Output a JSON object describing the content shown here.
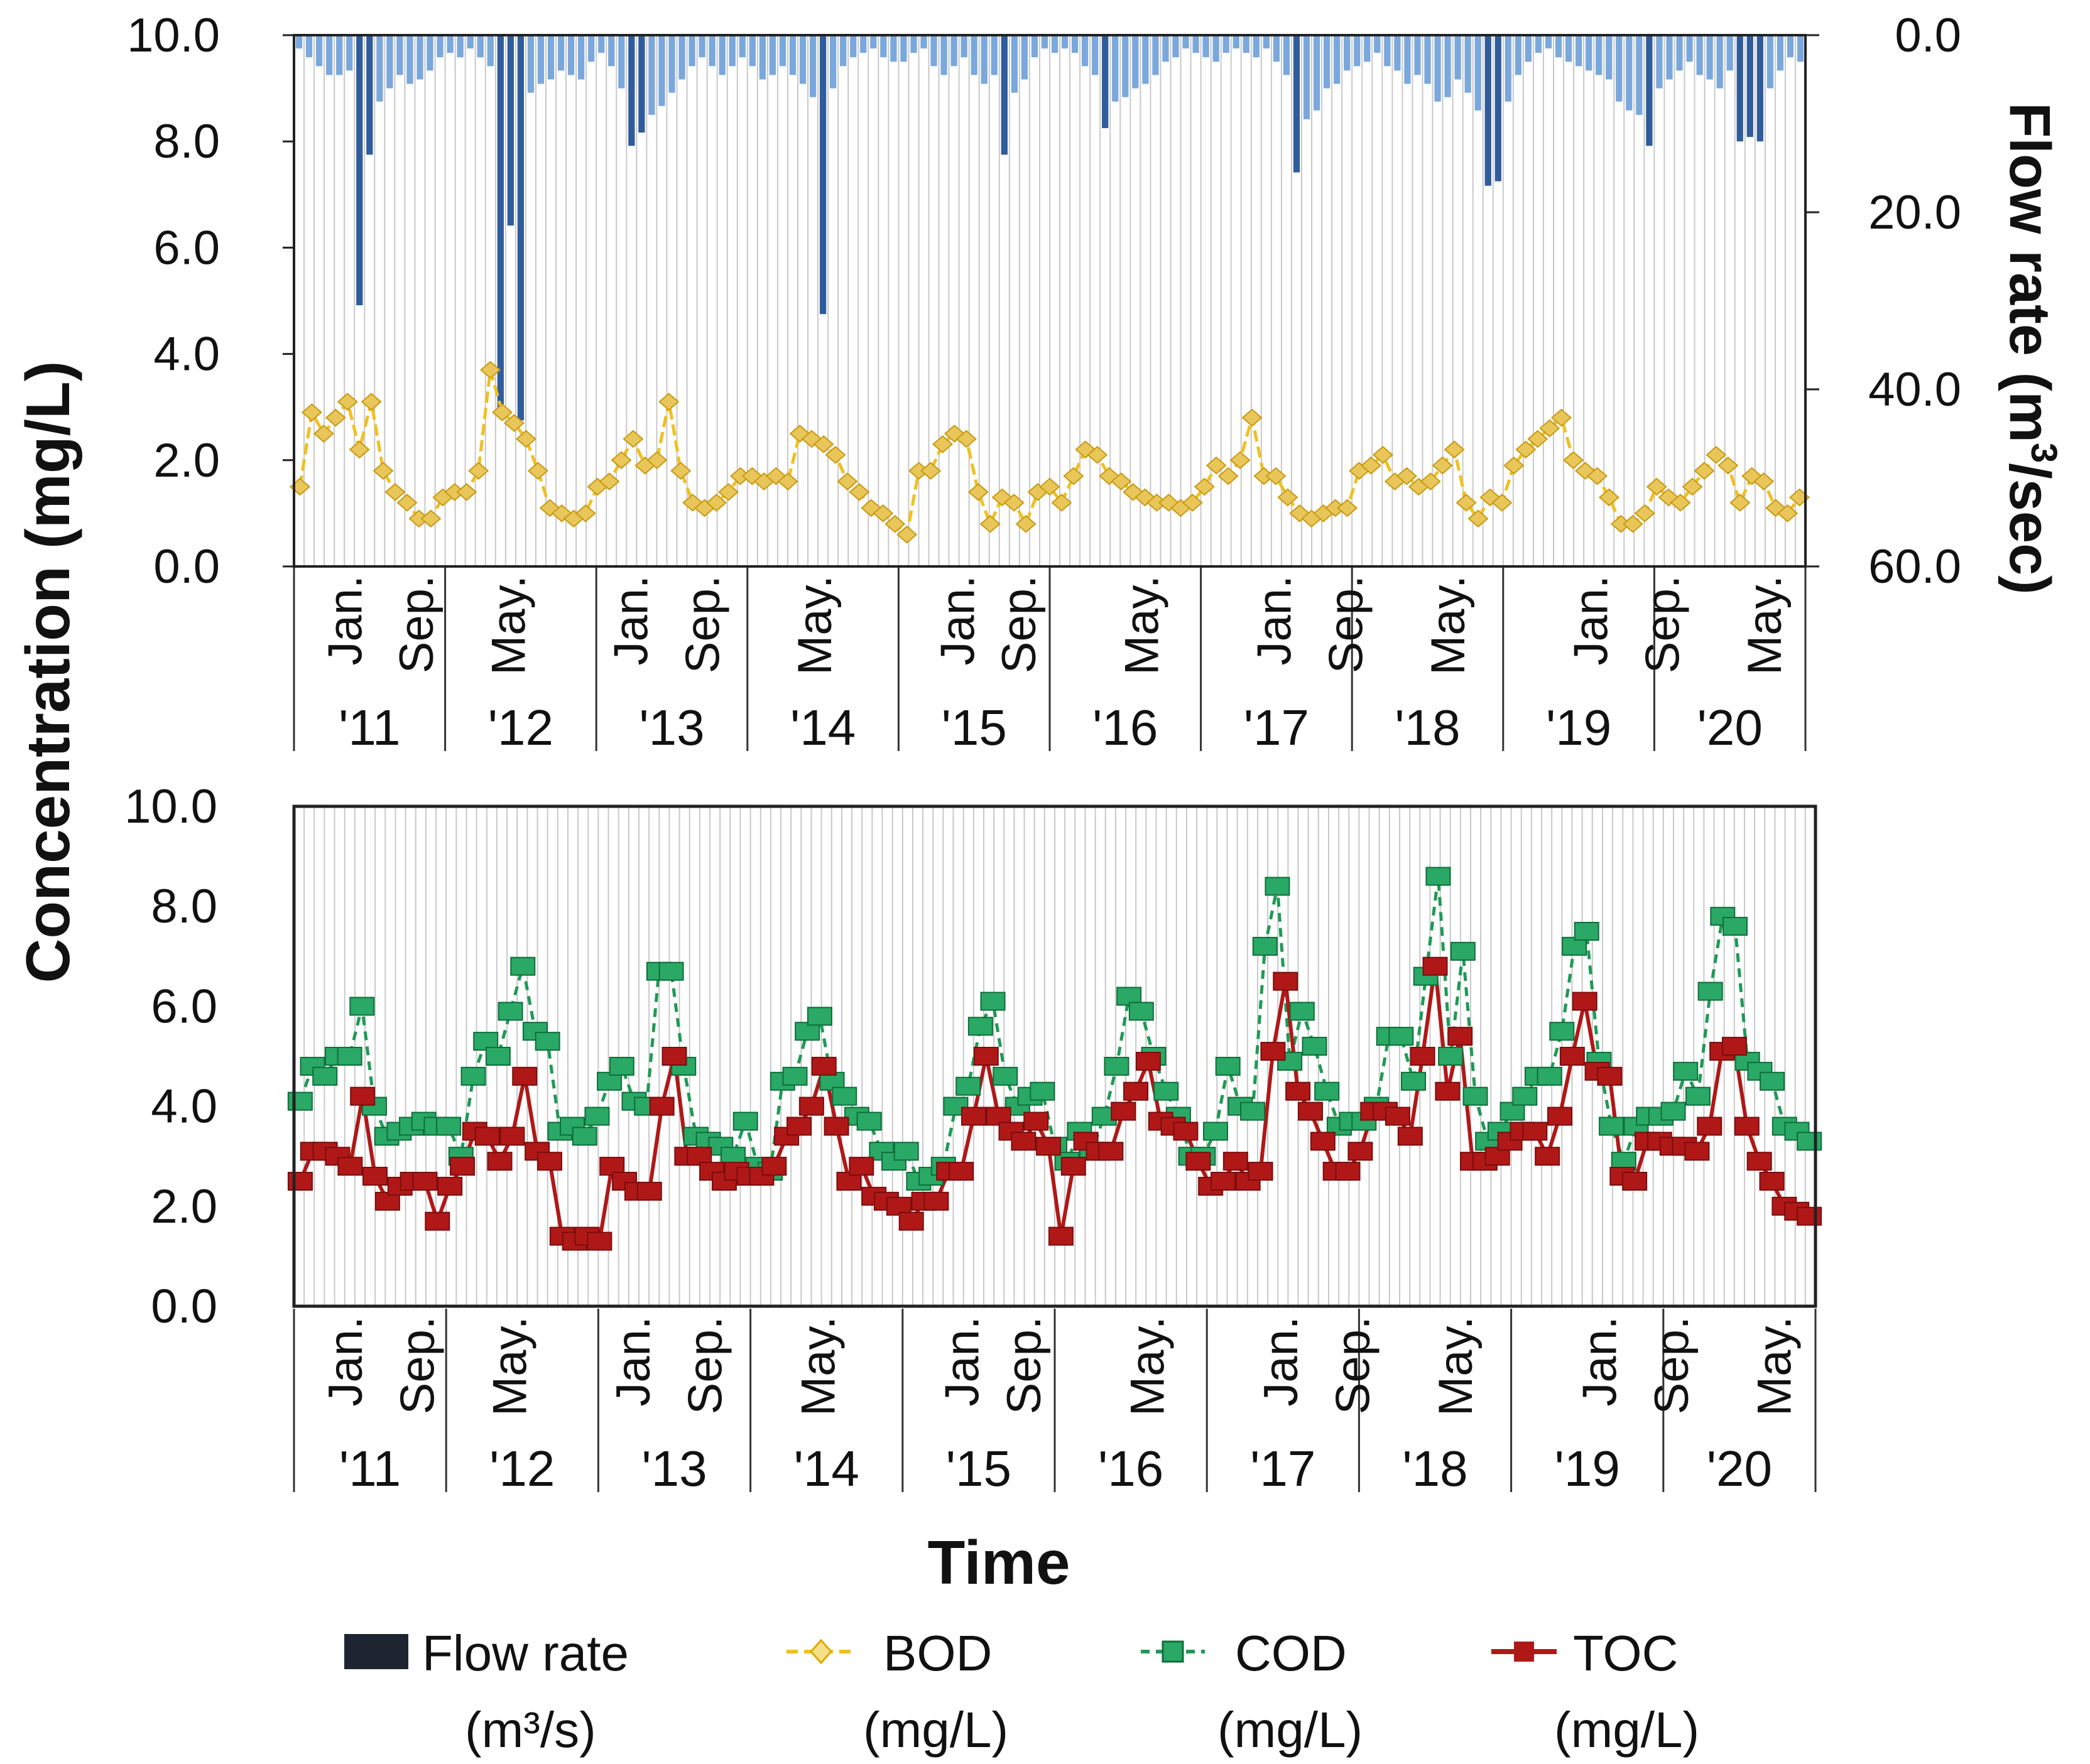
{
  "y_axis_title": "Concentration (mg/L)",
  "y2_axis_title_main": "Flow rate (m",
  "y2_axis_title_sup": "3",
  "y2_axis_title_end": "/sec)",
  "x_axis_title": "Time",
  "legend": [
    {
      "label": "Flow rate",
      "unit": "(m³/s)",
      "color": "#1f2530",
      "marker": "bar"
    },
    {
      "label": "BOD",
      "unit": "(mg/L)",
      "color": "#f0c020",
      "marker": "diamond"
    },
    {
      "label": "COD",
      "unit": "(mg/L)",
      "color": "#1e9a55",
      "marker": "square"
    },
    {
      "label": "TOC",
      "unit": "(mg/L)",
      "color": "#b01818",
      "marker": "square"
    }
  ],
  "colors": {
    "flow_light": "#7aa8dc",
    "flow_dark": "#2f5c9a",
    "grid": "#c8c8c8",
    "bod": "#f0c020",
    "bod_fill": "#e8c65a",
    "cod": "#1e9a55",
    "cod_fill": "#2aa866",
    "toc": "#b01818"
  },
  "chart_data": [
    {
      "type": "bar+line",
      "xlabel": "",
      "ylabel": "Concentration (mg/L)",
      "y2label": "Flow rate (m³/sec)",
      "ylim": [
        0,
        10
      ],
      "y2lim": [
        0,
        60
      ],
      "y2_inverted": true,
      "yticks": [
        "0.0",
        "2.0",
        "4.0",
        "6.0",
        "8.0",
        "10.0"
      ],
      "y2ticks": [
        "0.0",
        "20.0",
        "40.0",
        "60.0"
      ],
      "year_labels": [
        "'11",
        "'12",
        "'13",
        "'14",
        "'15",
        "'16",
        "'17",
        "'18",
        "'19",
        "'20"
      ],
      "month_labels": [
        {
          "text": "Jan.",
          "x": 5
        },
        {
          "text": "Sep.",
          "x": 12
        },
        {
          "text": "May.",
          "x": 21
        },
        {
          "text": "Jan.",
          "x": 33
        },
        {
          "text": "Sep.",
          "x": 40
        },
        {
          "text": "May.",
          "x": 51
        },
        {
          "text": "Jan.",
          "x": 65
        },
        {
          "text": "Sep.",
          "x": 71
        },
        {
          "text": "May.",
          "x": 83
        },
        {
          "text": "Jan.",
          "x": 96
        },
        {
          "text": "Sep.",
          "x": 103
        },
        {
          "text": "May.",
          "x": 113
        },
        {
          "text": "Jan.",
          "x": 127
        },
        {
          "text": "Sep.",
          "x": 134
        },
        {
          "text": "May.",
          "x": 144
        }
      ],
      "legend_position": "bottom",
      "grid": true,
      "series": [
        {
          "name": "Flow rate",
          "axis": "y2",
          "kind": "bar",
          "values": [
            1.5,
            2.5,
            3.5,
            4.5,
            4.5,
            4.0,
            30.5,
            13.5,
            7.5,
            6.0,
            4.5,
            5.5,
            5.0,
            4.0,
            2.5,
            2.0,
            2.5,
            1.5,
            2.5,
            3.5,
            43.0,
            21.5,
            43.5,
            6.5,
            5.5,
            5.0,
            4.0,
            4.5,
            5.0,
            3.0,
            2.0,
            3.5,
            6.0,
            12.5,
            11.0,
            9.0,
            8.0,
            6.5,
            5.0,
            3.5,
            2.5,
            3.5,
            4.5,
            3.5,
            2.5,
            3.5,
            5.0,
            4.5,
            3.5,
            4.5,
            5.5,
            7.0,
            31.5,
            6.0,
            3.5,
            2.5,
            2.0,
            1.5,
            2.5,
            3.0,
            3.0,
            2.0,
            1.5,
            3.5,
            4.5,
            3.5,
            2.5,
            4.5,
            5.5,
            4.5,
            13.5,
            6.5,
            5.0,
            2.5,
            1.5,
            2.0,
            1.5,
            2.0,
            3.5,
            4.5,
            10.5,
            7.5,
            7.0,
            6.0,
            5.5,
            4.5,
            3.0,
            2.5,
            1.5,
            2.0,
            2.5,
            3.0,
            2.0,
            1.5,
            2.0,
            2.5,
            1.5,
            3.0,
            4.5,
            15.5,
            9.5,
            8.5,
            6.0,
            5.5,
            4.0,
            3.5,
            3.0,
            2.0,
            3.5,
            4.0,
            5.5,
            4.5,
            5.5,
            7.5,
            7.0,
            5.0,
            6.5,
            8.5,
            17.0,
            16.5,
            7.5,
            4.5,
            3.0,
            2.0,
            1.5,
            2.5,
            3.0,
            3.5,
            4.0,
            4.5,
            5.0,
            7.5,
            8.5,
            9.0,
            12.5,
            6.0,
            5.0,
            4.0,
            3.0,
            4.5,
            5.0,
            6.0,
            4.0,
            12.0,
            11.5,
            12.0,
            6.0,
            4.0,
            2.5,
            3.0
          ]
        },
        {
          "name": "BOD",
          "axis": "y",
          "kind": "line",
          "values": [
            1.5,
            2.9,
            2.5,
            2.8,
            3.1,
            2.2,
            3.1,
            1.8,
            1.4,
            1.2,
            0.9,
            0.9,
            1.3,
            1.4,
            1.4,
            1.8,
            3.7,
            2.9,
            2.7,
            2.4,
            1.8,
            1.1,
            1.0,
            0.9,
            1.0,
            1.5,
            1.6,
            2.0,
            2.4,
            1.9,
            2.0,
            3.1,
            1.8,
            1.2,
            1.1,
            1.2,
            1.4,
            1.7,
            1.7,
            1.6,
            1.7,
            1.6,
            2.5,
            2.4,
            2.3,
            2.1,
            1.6,
            1.4,
            1.1,
            1.0,
            0.8,
            0.6,
            1.8,
            1.8,
            2.3,
            2.5,
            2.4,
            1.4,
            0.8,
            1.3,
            1.2,
            0.8,
            1.4,
            1.5,
            1.2,
            1.7,
            2.2,
            2.1,
            1.7,
            1.6,
            1.4,
            1.3,
            1.2,
            1.2,
            1.1,
            1.2,
            1.5,
            1.9,
            1.7,
            2.0,
            2.8,
            1.7,
            1.7,
            1.3,
            1.0,
            0.9,
            1.0,
            1.1,
            1.1,
            1.8,
            1.9,
            2.1,
            1.6,
            1.7,
            1.5,
            1.6,
            1.9,
            2.2,
            1.2,
            0.9,
            1.3,
            1.2,
            1.9,
            2.2,
            2.4,
            2.6,
            2.8,
            2.0,
            1.8,
            1.7,
            1.3,
            0.8,
            0.8,
            1.0,
            1.5,
            1.3,
            1.2,
            1.5,
            1.8,
            2.1,
            1.9,
            1.2,
            1.7,
            1.6,
            1.1,
            1.0,
            1.3
          ]
        }
      ]
    },
    {
      "type": "line",
      "xlabel": "Time",
      "ylabel": "Concentration (mg/L)",
      "ylim": [
        0,
        10
      ],
      "yticks": [
        "0.0",
        "2.0",
        "4.0",
        "6.0",
        "8.0",
        "10.0"
      ],
      "year_labels": [
        "'11",
        "'12",
        "'13",
        "'14",
        "'15",
        "'16",
        "'17",
        "'18",
        "'19",
        "'20"
      ],
      "month_labels": [
        {
          "text": "Jan.",
          "x": 5
        },
        {
          "text": "Sep.",
          "x": 12
        },
        {
          "text": "May.",
          "x": 21
        },
        {
          "text": "Jan.",
          "x": 33
        },
        {
          "text": "Sep.",
          "x": 40
        },
        {
          "text": "May.",
          "x": 51
        },
        {
          "text": "Jan.",
          "x": 65
        },
        {
          "text": "Sep.",
          "x": 71
        },
        {
          "text": "May.",
          "x": 83
        },
        {
          "text": "Jan.",
          "x": 96
        },
        {
          "text": "Sep.",
          "x": 103
        },
        {
          "text": "May.",
          "x": 113
        },
        {
          "text": "Jan.",
          "x": 127
        },
        {
          "text": "Sep.",
          "x": 134
        },
        {
          "text": "May.",
          "x": 144
        }
      ],
      "legend_position": "bottom",
      "grid": true,
      "series": [
        {
          "name": "COD",
          "values": [
            4.1,
            4.8,
            4.6,
            5.0,
            5.0,
            6.0,
            4.0,
            3.4,
            3.5,
            3.6,
            3.7,
            3.6,
            3.6,
            3.0,
            4.6,
            5.3,
            5.0,
            5.9,
            6.8,
            5.5,
            5.3,
            3.5,
            3.6,
            3.4,
            3.8,
            4.5,
            4.8,
            4.1,
            4.0,
            6.7,
            6.7,
            4.8,
            3.4,
            3.3,
            3.2,
            3.0,
            3.7,
            2.8,
            2.7,
            4.5,
            4.6,
            5.5,
            5.8,
            4.5,
            4.2,
            3.8,
            3.7,
            3.1,
            2.9,
            3.1,
            2.5,
            2.6,
            2.8,
            4.0,
            4.4,
            5.6,
            6.1,
            4.6,
            4.0,
            4.2,
            4.3,
            3.2,
            2.9,
            3.5,
            3.1,
            3.8,
            4.8,
            6.2,
            5.9,
            5.0,
            4.3,
            3.8,
            3.0,
            3.0,
            3.5,
            4.8,
            4.0,
            3.9,
            7.2,
            8.4,
            4.9,
            5.9,
            5.2,
            4.3,
            3.6,
            3.7,
            3.7,
            4.0,
            5.4,
            5.4,
            4.5,
            6.6,
            8.6,
            5.0,
            7.1,
            4.2,
            3.3,
            3.5,
            3.9,
            4.2,
            4.6,
            4.6,
            5.5,
            7.2,
            7.5,
            4.9,
            3.6,
            2.9,
            3.6,
            3.8,
            3.8,
            3.9,
            4.7,
            4.2,
            6.3,
            7.8,
            7.6,
            4.9,
            4.7,
            4.5,
            3.6,
            3.5,
            3.3
          ]
        },
        {
          "name": "TOC",
          "values": [
            2.5,
            3.1,
            3.1,
            3.0,
            2.8,
            4.2,
            2.6,
            2.1,
            2.4,
            2.5,
            2.5,
            1.7,
            2.4,
            2.8,
            3.5,
            3.4,
            2.9,
            3.4,
            4.6,
            3.1,
            2.9,
            1.4,
            1.3,
            1.4,
            1.3,
            2.8,
            2.5,
            2.3,
            2.3,
            4.0,
            5.0,
            3.0,
            3.0,
            2.7,
            2.5,
            2.7,
            2.6,
            2.6,
            2.8,
            3.4,
            3.6,
            4.0,
            4.8,
            3.6,
            2.5,
            2.8,
            2.2,
            2.1,
            2.0,
            1.7,
            2.1,
            2.1,
            2.7,
            2.7,
            3.8,
            5.0,
            3.8,
            3.5,
            3.3,
            3.7,
            3.2,
            1.4,
            2.8,
            3.3,
            3.1,
            3.1,
            3.9,
            4.3,
            4.9,
            3.7,
            3.6,
            3.5,
            2.9,
            2.4,
            2.5,
            2.9,
            2.5,
            2.7,
            5.1,
            6.5,
            4.3,
            3.9,
            3.3,
            2.7,
            2.7,
            3.1,
            3.9,
            3.9,
            3.8,
            3.4,
            5.0,
            6.8,
            4.3,
            5.4,
            2.9,
            2.9,
            3.0,
            3.3,
            3.5,
            3.5,
            3.0,
            3.8,
            5.0,
            6.1,
            4.7,
            4.6,
            2.6,
            2.5,
            3.3,
            3.3,
            3.2,
            3.2,
            3.1,
            3.6,
            5.1,
            5.2,
            3.6,
            2.9,
            2.5,
            2.0,
            1.9,
            1.8
          ]
        }
      ]
    }
  ]
}
